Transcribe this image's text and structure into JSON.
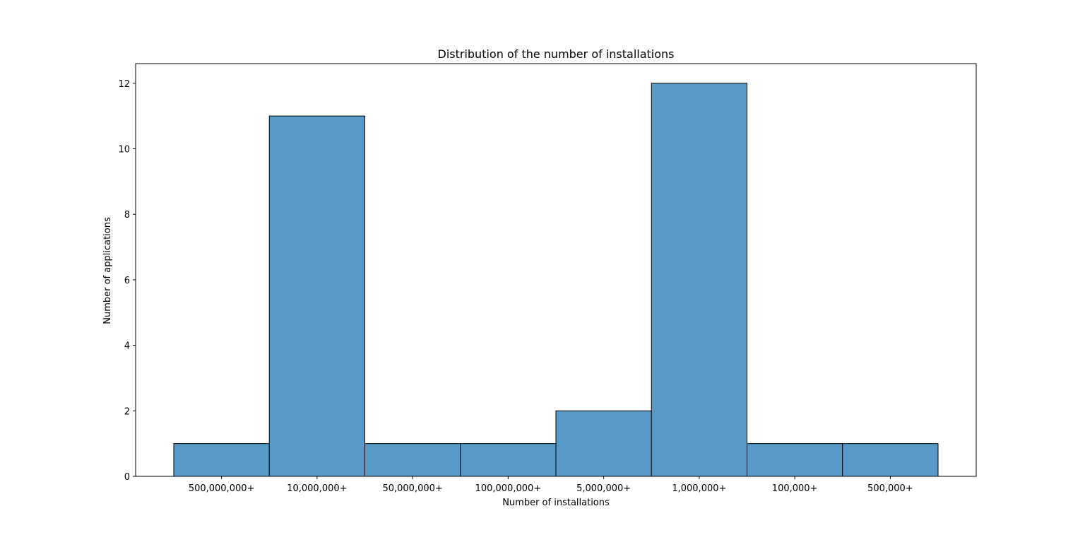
{
  "chart_data": {
    "type": "bar",
    "title": "Distribution of the number of installations",
    "xlabel": "Number of installations",
    "ylabel": "Number of applications",
    "categories": [
      "500,000,000+",
      "10,000,000+",
      "50,000,000+",
      "100,000,000+",
      "5,000,000+",
      "1,000,000+",
      "100,000+",
      "500,000+"
    ],
    "values": [
      1,
      11,
      1,
      1,
      2,
      12,
      1,
      1
    ],
    "ylim": [
      0,
      12.6
    ],
    "yticks": [
      0,
      2,
      4,
      6,
      8,
      10,
      12
    ],
    "grid": false,
    "bar_color": "#5799c7",
    "edge_color": "#000000"
  }
}
